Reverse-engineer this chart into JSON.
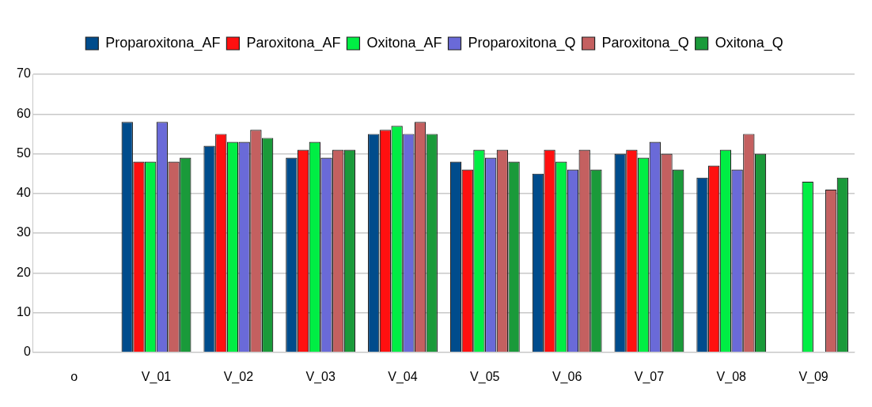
{
  "chart_data": {
    "type": "bar",
    "categories": [
      "o",
      "V_01",
      "V_02",
      "V_03",
      "V_04",
      "V_05",
      "V_06",
      "V_07",
      "V_08",
      "V_09"
    ],
    "series": [
      {
        "name": "Proparoxitona_AF",
        "color": "#004c8c",
        "values": [
          null,
          58,
          52,
          49,
          55,
          48,
          45,
          50,
          44,
          null
        ]
      },
      {
        "name": "Paroxitona_AF",
        "color": "#ff1010",
        "values": [
          null,
          48,
          55,
          51,
          56,
          46,
          51,
          51,
          47,
          null
        ]
      },
      {
        "name": "Oxitona_AF",
        "color": "#00ee44",
        "values": [
          null,
          48,
          53,
          53,
          57,
          51,
          48,
          49,
          51,
          43
        ]
      },
      {
        "name": "Proparoxitona_Q",
        "color": "#6a6ad8",
        "values": [
          null,
          58,
          53,
          49,
          55,
          49,
          46,
          53,
          46,
          null
        ]
      },
      {
        "name": "Paroxitona_Q",
        "color": "#c46060",
        "values": [
          null,
          48,
          56,
          51,
          58,
          51,
          51,
          50,
          55,
          41
        ]
      },
      {
        "name": "Oxitona_Q",
        "color": "#1a9a3a",
        "values": [
          null,
          49,
          54,
          51,
          55,
          48,
          46,
          46,
          50,
          44
        ]
      }
    ],
    "ylim": [
      0,
      70
    ],
    "yticks": [
      0,
      10,
      20,
      30,
      40,
      50,
      60,
      70
    ],
    "grid": "y",
    "legend": "top"
  }
}
